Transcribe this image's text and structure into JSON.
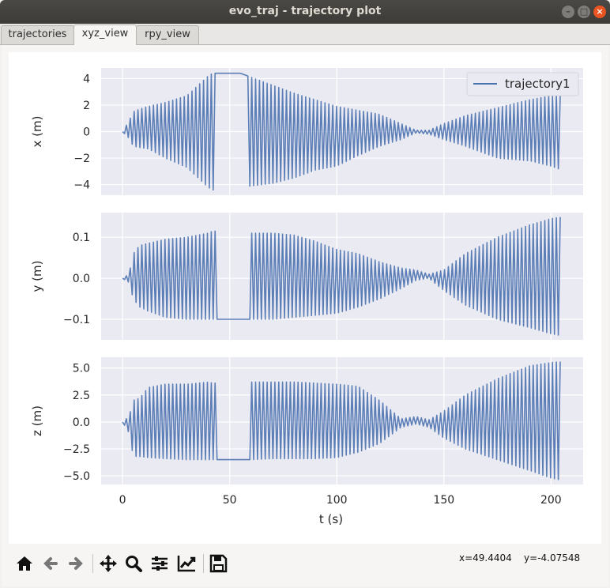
{
  "window": {
    "title": "evo_traj - trajectory plot"
  },
  "tabs": [
    {
      "label": "trajectories",
      "active": false
    },
    {
      "label": "xyz_view",
      "active": true
    },
    {
      "label": "rpy_view",
      "active": false
    }
  ],
  "toolbar": {
    "icons": [
      "home-icon",
      "back-arrow-icon",
      "forward-arrow-icon",
      "pan-icon",
      "zoom-icon",
      "subplots-config-icon",
      "edit-axes-icon",
      "save-icon"
    ]
  },
  "status": {
    "x_readout": "x=49.4404",
    "y_readout": "y=-4.07548"
  },
  "colors": {
    "series": "#4c72b0",
    "axes_bg": "#eaeaf2",
    "grid": "#ffffff"
  },
  "chart_data": [
    {
      "type": "line",
      "ylabel": "x (m)",
      "xlim": [
        -10,
        215
      ],
      "ylim": [
        -4.8,
        4.8
      ],
      "yticks": [
        4,
        2,
        0,
        -2,
        -4
      ],
      "yticklabels": [
        "4",
        "2",
        "0",
        "−2",
        "−4"
      ],
      "grid": true,
      "legend": {
        "entries": [
          "trajectory1"
        ],
        "placement": "top-right"
      },
      "series": [
        {
          "name": "trajectory1",
          "envelope": {
            "t": [
              0,
              3,
              5,
              8,
              12,
              20,
              30,
              40,
              42,
              45,
              55,
              60,
              70,
              80,
              90,
              100,
              110,
              120,
              130,
              137,
              143,
              150,
              160,
              175,
              190,
              200,
              205
            ],
            "upper": [
              0,
              0.8,
              1.5,
              1.7,
              1.9,
              2.2,
              2.7,
              4.2,
              4.4,
              4.4,
              4.4,
              4.1,
              3.5,
              2.9,
              2.4,
              1.9,
              1.6,
              1.3,
              0.6,
              0.1,
              0.1,
              0.6,
              1.2,
              1.8,
              2.4,
              2.7,
              2.7
            ],
            "lower": [
              0,
              -0.5,
              -1.1,
              -1.2,
              -1.3,
              -2.0,
              -2.7,
              -4.2,
              -4.4,
              -4.4,
              -4.2,
              -4.1,
              -3.9,
              -3.5,
              -2.9,
              -2.6,
              -1.8,
              -1.1,
              -0.6,
              -0.1,
              -0.2,
              -0.6,
              -1.1,
              -2.0,
              -2.2,
              -2.6,
              -2.9
            ]
          }
        }
      ],
      "xticks": [
        0,
        50,
        100,
        150,
        200
      ]
    },
    {
      "type": "line",
      "ylabel": "y (m)",
      "xlim": [
        -10,
        215
      ],
      "ylim": [
        -0.15,
        0.16
      ],
      "yticks": [
        0.1,
        0.0,
        -0.1
      ],
      "yticklabels": [
        "0.1",
        "0.0",
        "−0.1"
      ],
      "grid": true,
      "series": [
        {
          "name": "trajectory1",
          "envelope": {
            "t": [
              0,
              3,
              5,
              8,
              12,
              20,
              30,
              40,
              42,
              45,
              55,
              60,
              70,
              80,
              90,
              100,
              110,
              120,
              130,
              137,
              143,
              150,
              160,
              175,
              190,
              200,
              205
            ],
            "upper": [
              0,
              0.01,
              0.06,
              0.08,
              0.085,
              0.095,
              0.1,
              0.11,
              0.115,
              0.115,
              0.11,
              0.11,
              0.11,
              0.105,
              0.09,
              0.07,
              0.06,
              0.04,
              0.025,
              0.02,
              0.01,
              0.02,
              0.06,
              0.1,
              0.13,
              0.145,
              0.15
            ],
            "lower": [
              0,
              -0.01,
              -0.05,
              -0.07,
              -0.08,
              -0.095,
              -0.1,
              -0.1,
              -0.1,
              -0.1,
              -0.1,
              -0.1,
              -0.1,
              -0.095,
              -0.09,
              -0.085,
              -0.07,
              -0.05,
              -0.025,
              -0.005,
              0.0,
              -0.03,
              -0.065,
              -0.1,
              -0.12,
              -0.135,
              -0.14
            ]
          }
        }
      ],
      "xticks": [
        0,
        50,
        100,
        150,
        200
      ]
    },
    {
      "type": "line",
      "ylabel": "z (m)",
      "xlabel": "t (s)",
      "xlim": [
        -10,
        215
      ],
      "ylim": [
        -5.8,
        6.0
      ],
      "yticks": [
        5.0,
        2.5,
        0.0,
        -2.5,
        -5.0
      ],
      "yticklabels": [
        "5.0",
        "2.5",
        "0.0",
        "−2.5",
        "−5.0"
      ],
      "xticks": [
        0,
        50,
        100,
        150,
        200
      ],
      "xticklabels": [
        "0",
        "50",
        "100",
        "150",
        "200"
      ],
      "grid": true,
      "series": [
        {
          "name": "trajectory1",
          "envelope": {
            "t": [
              0,
              3,
              5,
              8,
              12,
              20,
              30,
              40,
              42,
              45,
              55,
              60,
              70,
              80,
              90,
              100,
              110,
              120,
              130,
              137,
              143,
              150,
              160,
              175,
              190,
              200,
              205
            ],
            "upper": [
              0,
              0.5,
              2.0,
              2.2,
              3.2,
              3.5,
              3.5,
              3.7,
              3.6,
              3.6,
              3.6,
              3.7,
              3.7,
              3.7,
              3.6,
              3.5,
              3.3,
              2.0,
              0.3,
              0.5,
              0.2,
              1.0,
              2.5,
              4.0,
              5.2,
              5.5,
              5.6
            ],
            "lower": [
              0,
              -1.0,
              -3.2,
              -3.2,
              -3.3,
              -3.4,
              -3.5,
              -3.5,
              -3.5,
              -3.5,
              -3.5,
              -3.5,
              -3.4,
              -3.4,
              -3.4,
              -3.3,
              -2.8,
              -2.0,
              -0.5,
              -0.2,
              -0.5,
              -1.5,
              -2.5,
              -3.5,
              -4.5,
              -5.2,
              -5.4
            ]
          }
        }
      ]
    }
  ]
}
